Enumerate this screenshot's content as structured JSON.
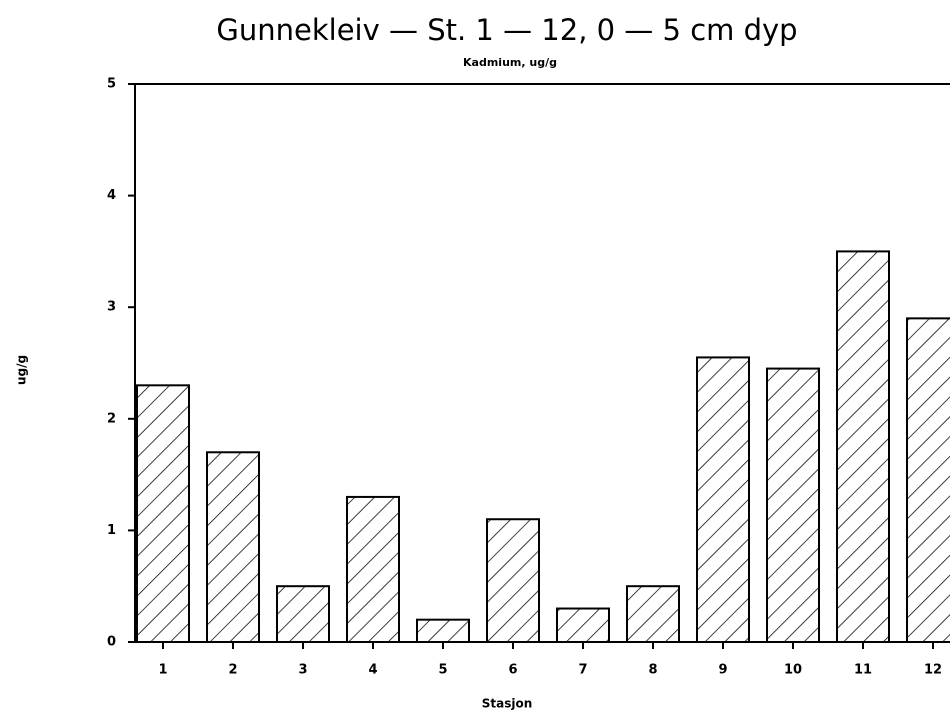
{
  "chart_data": {
    "type": "bar",
    "title": "Gunnekleiv — St. 1 — 12, 0 — 5 cm dyp",
    "subtitle": "Kadmium, ug/g",
    "y_label": "ug/g",
    "x_label": "Stasjon",
    "categories": [
      "1",
      "2",
      "3",
      "4",
      "5",
      "6",
      "7",
      "8",
      "9",
      "10",
      "11",
      "12"
    ],
    "values": [
      2.3,
      1.7,
      0.5,
      1.3,
      0.2,
      1.1,
      0.3,
      0.5,
      2.55,
      2.45,
      3.5,
      2.9
    ],
    "color": "#000000",
    "ylim": [
      0,
      5
    ],
    "yticks": [
      0,
      1,
      2,
      3,
      4,
      5
    ],
    "grid": false
  }
}
